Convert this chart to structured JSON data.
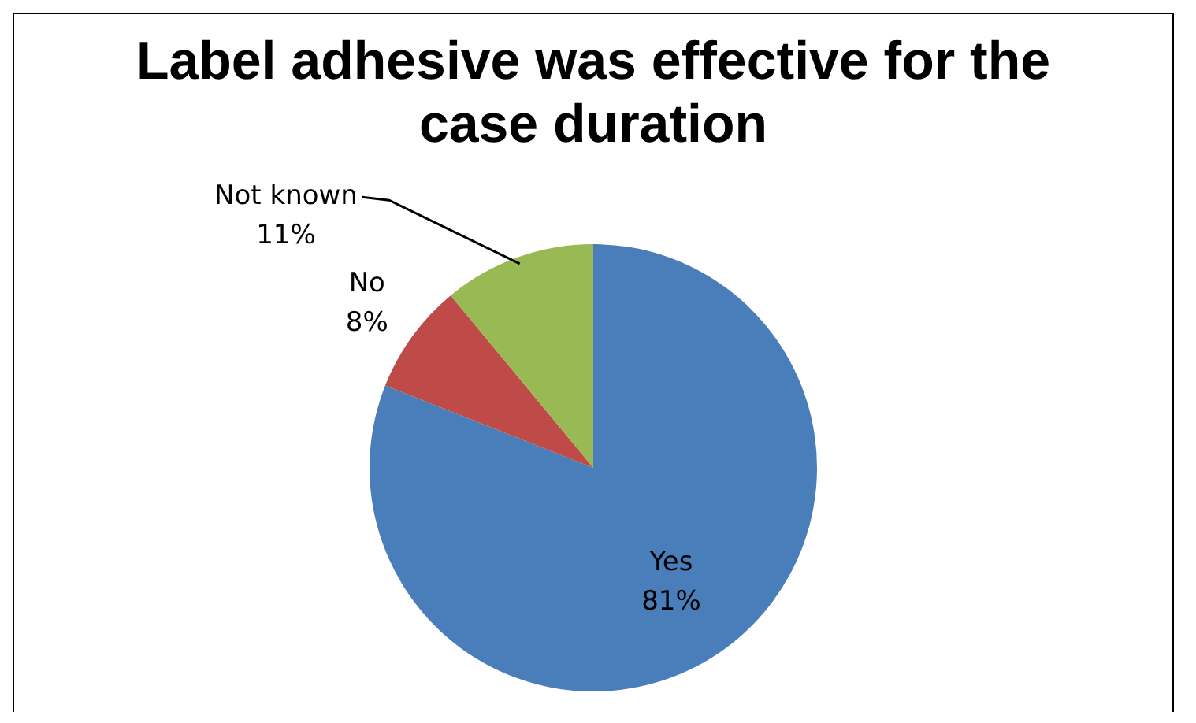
{
  "chart_data": {
    "type": "pie",
    "title": "Label adhesive was effective for the case duration",
    "categories": [
      "Yes",
      "No",
      "Not known"
    ],
    "values": [
      81,
      8,
      11
    ],
    "colors": [
      "#4a7ebb",
      "#be4b48",
      "#98b954"
    ],
    "value_labels": [
      "81%",
      "8%",
      "11%"
    ],
    "legend": false
  }
}
